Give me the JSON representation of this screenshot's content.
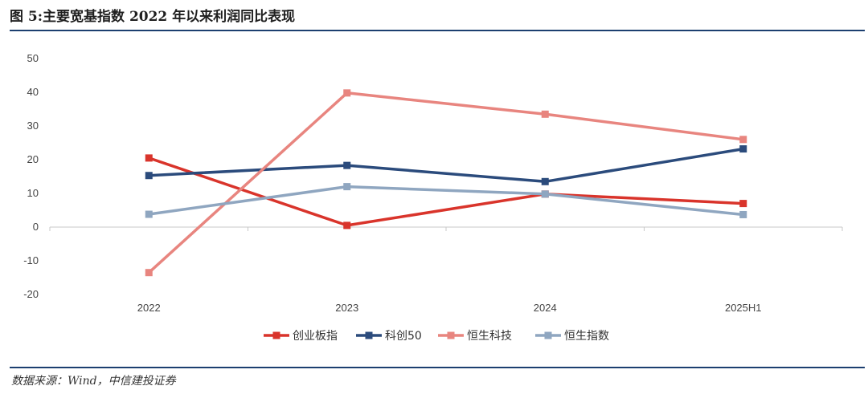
{
  "header": {
    "title": "图 5:主要宽基指数 2022 年以来利润同比表现"
  },
  "footer": {
    "source": "数据来源：Wind，中信建投证券"
  },
  "chart_data": {
    "type": "line",
    "title": "图 5:主要宽基指数 2022 年以来利润同比表现",
    "xlabel": "",
    "ylabel": "",
    "categories": [
      "2022",
      "2023",
      "2024",
      "2025H1"
    ],
    "ylim": [
      -20,
      50
    ],
    "yticks": [
      50,
      40,
      30,
      20,
      10,
      0,
      -10,
      -20
    ],
    "grid": false,
    "legend_position": "bottom",
    "series": [
      {
        "name": "创业板指",
        "color": "#d9342b",
        "values": [
          20.5,
          0.5,
          9.8,
          7.0
        ]
      },
      {
        "name": "科创50",
        "color": "#2b4b7c",
        "values": [
          15.3,
          18.3,
          13.5,
          23.2
        ]
      },
      {
        "name": "恒生科技",
        "color": "#e8857f",
        "values": [
          -13.5,
          39.8,
          33.5,
          26.0
        ]
      },
      {
        "name": "恒生指数",
        "color": "#8fa6c0",
        "values": [
          3.8,
          12.0,
          9.8,
          3.7
        ]
      }
    ]
  }
}
